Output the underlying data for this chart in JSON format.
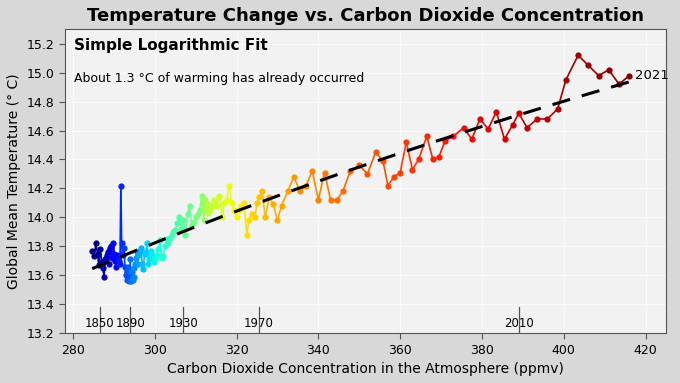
{
  "title": "Temperature Change vs. Carbon Dioxide Concentration",
  "xlabel": "Carbon Dioxide Concentration in the Atmosphere (ppmv)",
  "ylabel": "Global Mean Temperature (° C)",
  "annotation1": "Simple Logarithmic Fit",
  "annotation2": "About 1.3 °C of warming has already occurred",
  "xlim": [
    278,
    425
  ],
  "ylim": [
    13.2,
    15.3
  ],
  "xticks": [
    280,
    300,
    320,
    340,
    360,
    380,
    400,
    420
  ],
  "yticks": [
    13.2,
    13.4,
    13.6,
    13.8,
    14.0,
    14.2,
    14.4,
    14.6,
    14.8,
    15.0,
    15.2
  ],
  "year_labels": [
    "1850",
    "1890",
    "1930",
    "1970",
    "2010"
  ],
  "year_co2": [
    286.5,
    294.0,
    307.0,
    325.5,
    389.0
  ],
  "bg_color": "#e8e8e8",
  "plot_bg": "#f0f0f0",
  "data": [
    [
      284.7,
      13.77,
      1850
    ],
    [
      285.2,
      13.73,
      1851
    ],
    [
      285.6,
      13.82,
      1852
    ],
    [
      286.0,
      13.75,
      1853
    ],
    [
      286.3,
      13.67,
      1854
    ],
    [
      286.7,
      13.78,
      1855
    ],
    [
      287.0,
      13.69,
      1856
    ],
    [
      287.3,
      13.65,
      1857
    ],
    [
      287.6,
      13.59,
      1858
    ],
    [
      287.9,
      13.71,
      1859
    ],
    [
      288.1,
      13.72,
      1860
    ],
    [
      288.3,
      13.74,
      1861
    ],
    [
      288.5,
      13.76,
      1862
    ],
    [
      288.7,
      13.68,
      1863
    ],
    [
      288.9,
      13.77,
      1864
    ],
    [
      289.1,
      13.79,
      1865
    ],
    [
      289.3,
      13.8,
      1866
    ],
    [
      289.5,
      13.72,
      1867
    ],
    [
      289.7,
      13.73,
      1868
    ],
    [
      289.9,
      13.82,
      1869
    ],
    [
      290.1,
      13.75,
      1870
    ],
    [
      290.3,
      13.7,
      1871
    ],
    [
      290.5,
      13.66,
      1872
    ],
    [
      290.7,
      13.74,
      1873
    ],
    [
      290.9,
      13.71,
      1874
    ],
    [
      291.1,
      13.72,
      1875
    ],
    [
      291.3,
      13.7,
      1876
    ],
    [
      291.5,
      13.68,
      1877
    ],
    [
      291.7,
      14.22,
      1878
    ],
    [
      291.9,
      13.82,
      1879
    ],
    [
      292.1,
      13.75,
      1880
    ],
    [
      292.3,
      13.74,
      1881
    ],
    [
      292.5,
      13.79,
      1882
    ],
    [
      292.7,
      13.66,
      1883
    ],
    [
      292.9,
      13.6,
      1884
    ],
    [
      293.1,
      13.57,
      1885
    ],
    [
      293.3,
      13.62,
      1886
    ],
    [
      293.5,
      13.66,
      1887
    ],
    [
      293.7,
      13.56,
      1888
    ],
    [
      293.9,
      13.62,
      1889
    ],
    [
      294.0,
      13.71,
      1890
    ],
    [
      294.2,
      13.56,
      1891
    ],
    [
      294.4,
      13.62,
      1892
    ],
    [
      294.6,
      13.57,
      1893
    ],
    [
      294.8,
      13.59,
      1894
    ],
    [
      295.0,
      13.65,
      1895
    ],
    [
      295.2,
      13.68,
      1896
    ],
    [
      295.4,
      13.72,
      1897
    ],
    [
      295.6,
      13.76,
      1898
    ],
    [
      295.8,
      13.68,
      1899
    ],
    [
      296.0,
      13.74,
      1900
    ],
    [
      296.3,
      13.77,
      1901
    ],
    [
      296.6,
      13.79,
      1902
    ],
    [
      296.9,
      13.68,
      1903
    ],
    [
      297.2,
      13.64,
      1904
    ],
    [
      297.5,
      13.75,
      1905
    ],
    [
      297.8,
      13.76,
      1906
    ],
    [
      298.1,
      13.82,
      1907
    ],
    [
      298.4,
      13.68,
      1908
    ],
    [
      298.7,
      13.71,
      1909
    ],
    [
      299.0,
      13.77,
      1910
    ],
    [
      299.3,
      13.74,
      1911
    ],
    [
      299.7,
      13.69,
      1912
    ],
    [
      300.1,
      13.71,
      1913
    ],
    [
      300.5,
      13.74,
      1914
    ],
    [
      300.9,
      13.78,
      1915
    ],
    [
      301.3,
      13.84,
      1916
    ],
    [
      301.7,
      13.72,
      1917
    ],
    [
      302.1,
      13.73,
      1918
    ],
    [
      302.5,
      13.8,
      1919
    ],
    [
      302.9,
      13.85,
      1920
    ],
    [
      303.3,
      13.82,
      1921
    ],
    [
      303.7,
      13.86,
      1922
    ],
    [
      304.1,
      13.88,
      1923
    ],
    [
      304.5,
      13.9,
      1924
    ],
    [
      305.0,
      13.91,
      1925
    ],
    [
      305.5,
      13.96,
      1926
    ],
    [
      306.0,
      14.0,
      1927
    ],
    [
      306.5,
      13.92,
      1928
    ],
    [
      307.0,
      13.98,
      1929
    ],
    [
      307.5,
      13.88,
      1930
    ],
    [
      308.0,
      14.02,
      1931
    ],
    [
      308.5,
      14.08,
      1932
    ],
    [
      309.0,
      13.95,
      1933
    ],
    [
      309.5,
      13.97,
      1934
    ],
    [
      310.0,
      14.0,
      1935
    ],
    [
      310.5,
      14.02,
      1936
    ],
    [
      311.0,
      14.05,
      1937
    ],
    [
      311.5,
      14.15,
      1938
    ],
    [
      311.8,
      14.1,
      1939
    ],
    [
      312.0,
      13.98,
      1940
    ],
    [
      312.1,
      14.12,
      1941
    ],
    [
      312.2,
      14.05,
      1942
    ],
    [
      312.3,
      14.08,
      1943
    ],
    [
      312.4,
      14.12,
      1944
    ],
    [
      312.5,
      14.06,
      1945
    ],
    [
      312.6,
      14.08,
      1946
    ],
    [
      312.7,
      14.05,
      1947
    ],
    [
      312.9,
      14.09,
      1948
    ],
    [
      313.1,
      14.03,
      1949
    ],
    [
      313.5,
      14.05,
      1950
    ],
    [
      314.0,
      14.08,
      1951
    ],
    [
      314.6,
      14.12,
      1952
    ],
    [
      315.2,
      14.08,
      1953
    ],
    [
      315.8,
      14.15,
      1954
    ],
    [
      316.5,
      14.0,
      1955
    ],
    [
      317.0,
      14.1,
      1956
    ],
    [
      317.6,
      14.12,
      1957
    ],
    [
      318.2,
      14.22,
      1958
    ],
    [
      318.8,
      14.1,
      1959
    ],
    [
      319.4,
      14.05,
      1960
    ],
    [
      320.0,
      14.0,
      1961
    ],
    [
      320.5,
      14.05,
      1962
    ],
    [
      321.0,
      14.08,
      1963
    ],
    [
      321.8,
      14.1,
      1964
    ],
    [
      322.5,
      13.88,
      1965
    ],
    [
      323.0,
      13.98,
      1966
    ],
    [
      323.7,
      14.02,
      1967
    ],
    [
      324.5,
      14.0,
      1968
    ],
    [
      325.0,
      14.1,
      1969
    ],
    [
      325.5,
      14.14,
      1970
    ],
    [
      326.3,
      14.18,
      1971
    ],
    [
      327.0,
      14.0,
      1972
    ],
    [
      328.0,
      14.14,
      1973
    ],
    [
      329.0,
      14.09,
      1974
    ],
    [
      330.0,
      13.98,
      1975
    ],
    [
      331.0,
      14.08,
      1976
    ],
    [
      332.5,
      14.18,
      1977
    ],
    [
      334.0,
      14.28,
      1978
    ],
    [
      335.5,
      14.18,
      1979
    ],
    [
      337.0,
      14.22,
      1980
    ],
    [
      338.5,
      14.32,
      1981
    ],
    [
      340.0,
      14.12,
      1982
    ],
    [
      341.5,
      14.31,
      1983
    ],
    [
      343.0,
      14.12,
      1984
    ],
    [
      344.5,
      14.12,
      1985
    ],
    [
      346.0,
      14.18,
      1986
    ],
    [
      347.8,
      14.32,
      1987
    ],
    [
      350.0,
      14.36,
      1988
    ],
    [
      352.0,
      14.3,
      1989
    ],
    [
      354.0,
      14.45,
      1990
    ],
    [
      355.8,
      14.39,
      1991
    ],
    [
      357.0,
      14.22,
      1992
    ],
    [
      358.5,
      14.28,
      1993
    ],
    [
      360.0,
      14.31,
      1994
    ],
    [
      361.5,
      14.52,
      1995
    ],
    [
      363.0,
      14.33,
      1996
    ],
    [
      364.5,
      14.4,
      1997
    ],
    [
      366.5,
      14.56,
      1998
    ],
    [
      368.0,
      14.4,
      1999
    ],
    [
      369.5,
      14.42,
      2000
    ],
    [
      371.0,
      14.53,
      2001
    ],
    [
      373.0,
      14.56,
      2002
    ],
    [
      375.5,
      14.62,
      2003
    ],
    [
      377.5,
      14.54,
      2004
    ],
    [
      379.5,
      14.68,
      2005
    ],
    [
      381.5,
      14.61,
      2006
    ],
    [
      383.5,
      14.73,
      2007
    ],
    [
      385.5,
      14.54,
      2008
    ],
    [
      387.5,
      14.64,
      2009
    ],
    [
      389.0,
      14.72,
      2010
    ],
    [
      391.0,
      14.62,
      2011
    ],
    [
      393.5,
      14.68,
      2012
    ],
    [
      396.0,
      14.68,
      2013
    ],
    [
      398.5,
      14.75,
      2014
    ],
    [
      400.5,
      14.95,
      2015
    ],
    [
      403.5,
      15.12,
      2016
    ],
    [
      406.0,
      15.05,
      2017
    ],
    [
      408.5,
      14.98,
      2018
    ],
    [
      411.0,
      15.02,
      2019
    ],
    [
      413.5,
      14.92,
      2020
    ],
    [
      416.0,
      14.98,
      2021
    ]
  ]
}
